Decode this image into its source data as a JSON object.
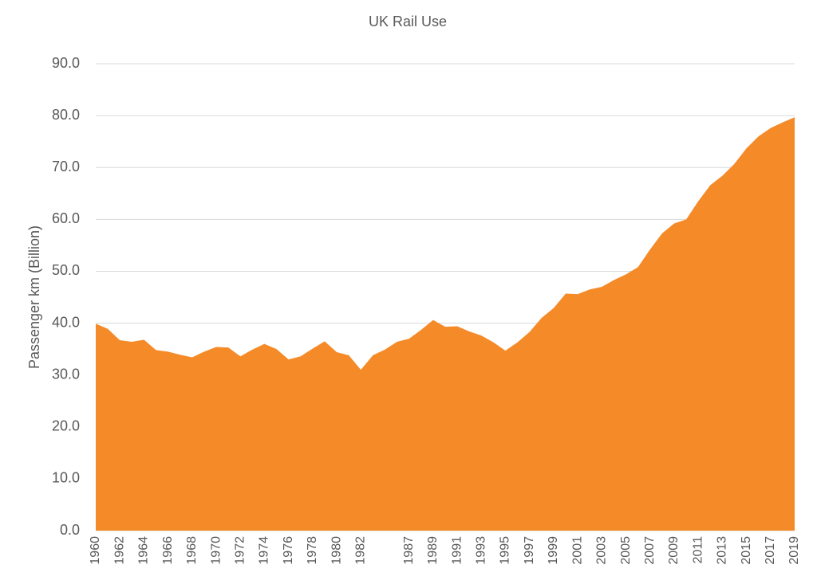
{
  "chart_data": {
    "type": "area",
    "title": "UK Rail Use",
    "y_label": "Passenger km (Billion)",
    "categories": [
      "1960",
      null,
      "1962",
      null,
      "1964",
      null,
      "1966",
      null,
      "1968",
      null,
      "1970",
      null,
      "1972",
      null,
      "1974",
      null,
      "1976",
      null,
      "1978",
      null,
      "1980",
      null,
      "1982",
      null,
      null,
      null,
      "1987",
      null,
      "1989",
      null,
      "1991",
      null,
      "1993",
      null,
      "1995",
      null,
      "1997",
      null,
      "1999",
      null,
      "2001",
      null,
      "2003",
      null,
      "2005",
      null,
      "2007",
      null,
      "2009",
      null,
      "2011",
      null,
      "2013",
      null,
      "2015",
      null,
      "2017",
      null,
      "2019"
    ],
    "series": [
      {
        "name": "Passenger km",
        "color": "#f58a28",
        "values": [
          39.9,
          38.9,
          36.7,
          36.4,
          36.8,
          34.8,
          34.5,
          33.9,
          33.4,
          34.5,
          35.4,
          35.3,
          33.6,
          34.9,
          36.0,
          35.0,
          33.0,
          33.6,
          35.1,
          36.5,
          34.4,
          33.8,
          31.0,
          33.8,
          34.9,
          36.4,
          37.0,
          38.7,
          40.6,
          39.3,
          39.4,
          38.4,
          37.6,
          36.3,
          34.7,
          36.3,
          38.3,
          41.0,
          42.9,
          45.7,
          45.6,
          46.5,
          47.0,
          48.3,
          49.4,
          50.8,
          54.2,
          57.3,
          59.2,
          60.0,
          63.5,
          66.6,
          68.4,
          70.7,
          73.7,
          76.0,
          77.6,
          78.7,
          79.7
        ]
      }
    ],
    "ylim": [
      0,
      90
    ],
    "yticks": [
      {
        "value": 0,
        "label": "0.0"
      },
      {
        "value": 10,
        "label": "10.0"
      },
      {
        "value": 20,
        "label": "20.0"
      },
      {
        "value": 30,
        "label": "30.0"
      },
      {
        "value": 40,
        "label": "40.0"
      },
      {
        "value": 50,
        "label": "50.0"
      },
      {
        "value": 60,
        "label": "60.0"
      },
      {
        "value": 70,
        "label": "70.0"
      },
      {
        "value": 80,
        "label": "80.0"
      },
      {
        "value": 90,
        "label": "90.0"
      }
    ],
    "grid": true
  }
}
